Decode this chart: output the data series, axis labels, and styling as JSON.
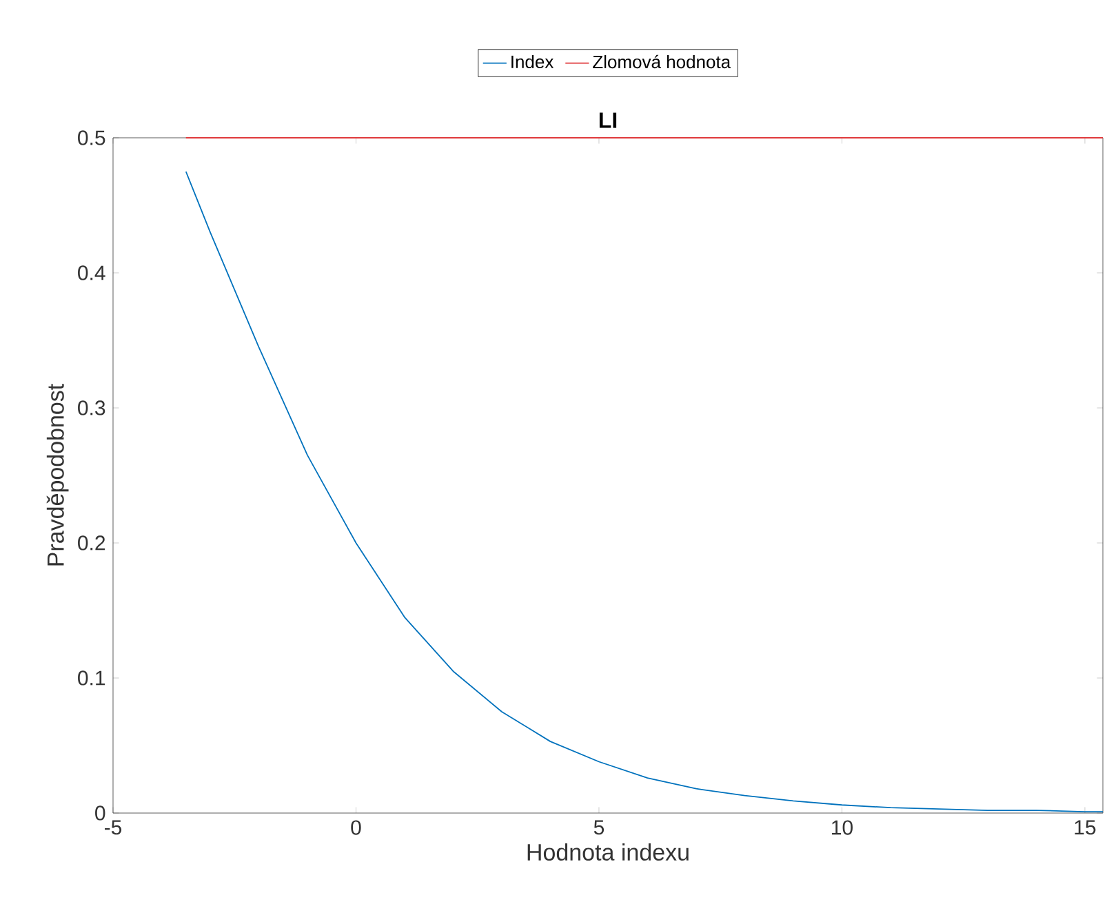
{
  "chart_data": {
    "type": "line",
    "title": "LI",
    "xlabel": "Hodnota indexu",
    "ylabel": "Pravděpodobnost",
    "xlim": [
      -5,
      15.37
    ],
    "ylim": [
      0,
      0.5
    ],
    "xticks": [
      -5,
      0,
      5,
      10,
      15
    ],
    "yticks": [
      0,
      0.1,
      0.2,
      0.3,
      0.4,
      0.5
    ],
    "legend": "top",
    "grid": false,
    "marker": "none",
    "series": [
      {
        "name": "Index",
        "color": "#0072bd",
        "x": [
          -3.5,
          -3,
          -2,
          -1,
          0,
          1,
          2,
          3,
          4,
          5,
          6,
          7,
          8,
          9,
          10,
          11,
          12,
          13,
          14,
          15,
          15.37
        ],
        "values": [
          0.475,
          0.43,
          0.345,
          0.265,
          0.2,
          0.145,
          0.105,
          0.075,
          0.053,
          0.038,
          0.026,
          0.018,
          0.013,
          0.009,
          0.006,
          0.004,
          0.003,
          0.002,
          0.002,
          0.001,
          0.001
        ]
      },
      {
        "name": "Zlomová hodnota",
        "color": "#e0393b",
        "x": [
          -3.5,
          15.37
        ],
        "values": [
          0.5,
          0.5
        ]
      }
    ]
  }
}
